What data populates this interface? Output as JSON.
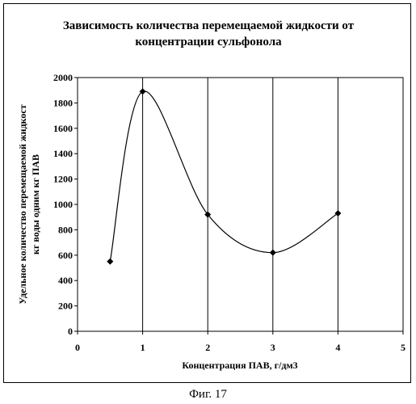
{
  "chart_data": {
    "type": "line",
    "title_lines": [
      "Зависимость количества перемещаемой жидкости от",
      "концентрации сульфонола"
    ],
    "xlabel": "Концентрация ПАВ, г/дм3",
    "ylabel_lines": [
      "Удельное количество перемещаемой жидкост",
      "кг воды одним кг ПАВ"
    ],
    "xlim": [
      0,
      5
    ],
    "ylim": [
      0,
      2000
    ],
    "x_ticks": [
      0,
      1,
      2,
      3,
      4,
      5
    ],
    "y_ticks": [
      0,
      200,
      400,
      600,
      800,
      1000,
      1200,
      1400,
      1600,
      1800,
      2000
    ],
    "grid": {
      "vertical": true,
      "horizontal": false
    },
    "smooth": true,
    "series": [
      {
        "x": [
          0.5,
          1,
          2,
          3,
          4
        ],
        "y": [
          550,
          1890,
          920,
          620,
          930
        ]
      }
    ],
    "marker": "diamond",
    "line_color": "#000000"
  },
  "caption": "Фиг. 17"
}
